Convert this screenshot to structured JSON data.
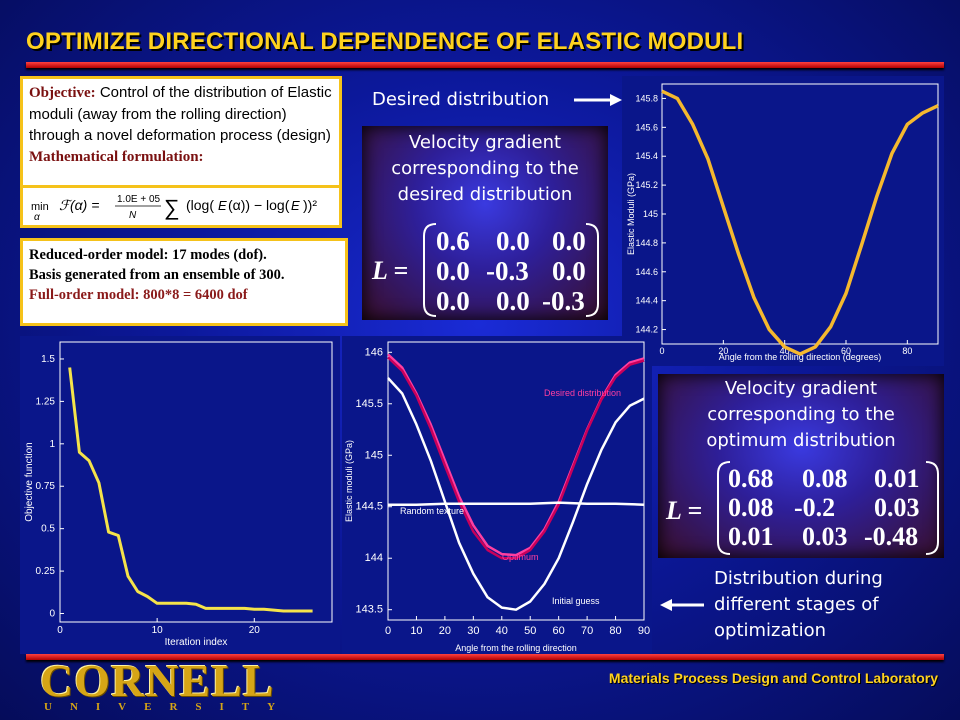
{
  "title": "OPTIMIZE DIRECTIONAL DEPENDENCE OF ELASTIC MODULI",
  "objective": {
    "label": "Objective:",
    "text": "Control of the distribution of Elastic moduli (away from the rolling direction) through a novel deformation process (design)",
    "math_label": "Mathematical formulation:"
  },
  "reduced_model": {
    "line1": "Reduced-order model: 17 modes (dof).",
    "line2": "Basis generated from an ensemble of 300.",
    "line3": "Full-order model: 800*8 = 6400 dof"
  },
  "desired_label": "Desired distribution",
  "desired_box": {
    "text": "Velocity gradient corresponding to the desired distribution",
    "L": "L =",
    "rows": [
      [
        "0.6",
        "0.0",
        "0.0"
      ],
      [
        "0.0",
        "-0.3",
        "0.0"
      ],
      [
        "0.0",
        "0.0",
        "-0.3"
      ]
    ]
  },
  "optimum_box": {
    "text": "Velocity gradient corresponding to the optimum distribution",
    "L": "L =",
    "rows": [
      [
        "0.68",
        "0.08",
        "0.01"
      ],
      [
        "0.08",
        "-0.2",
        "0.03"
      ],
      [
        "0.01",
        "0.03",
        "-0.48"
      ]
    ]
  },
  "stages_label": "Distribution during different stages of optimization",
  "footer": "Materials Process Design and Control Laboratory",
  "logo": {
    "name": "CORNELL",
    "sub": "UNIVERSITY"
  },
  "chart_data": [
    {
      "id": "desired",
      "type": "line",
      "xlabel": "Angle from the rolling direction (degrees)",
      "ylabel": "Elastic Moduli (GPa)",
      "xticks": [
        "0",
        "20",
        "40",
        "60",
        "80"
      ],
      "yticks": [
        "144.2",
        "144.4",
        "144.6",
        "144.8",
        "145",
        "145.2",
        "145.4",
        "145.6",
        "145.8"
      ],
      "xlim": [
        0,
        90
      ],
      "ylim": [
        144.1,
        145.9
      ],
      "color": "#f5b82e",
      "series": [
        {
          "x": [
            0,
            5,
            10,
            15,
            20,
            25,
            30,
            35,
            40,
            45,
            50,
            55,
            60,
            65,
            70,
            75,
            80,
            85,
            90
          ],
          "y": [
            145.85,
            145.8,
            145.62,
            145.38,
            145.05,
            144.72,
            144.42,
            144.2,
            144.08,
            144.03,
            144.08,
            144.22,
            144.45,
            144.78,
            145.12,
            145.42,
            145.62,
            145.7,
            145.75
          ]
        }
      ]
    },
    {
      "id": "objective",
      "type": "line",
      "xlabel": "Iteration index",
      "ylabel": "Objective function",
      "xticks": [
        "0",
        "10",
        "20"
      ],
      "yticks": [
        "0",
        "0.25",
        "0.5",
        "0.75",
        "1",
        "1.25",
        "1.5"
      ],
      "xlim": [
        0,
        28
      ],
      "ylim": [
        -0.05,
        1.6
      ],
      "color": "#f5e34a",
      "series": [
        {
          "x": [
            1,
            2,
            3,
            4,
            5,
            6,
            7,
            8,
            9,
            10,
            11,
            12,
            13,
            14,
            15,
            16,
            17,
            18,
            19,
            20,
            21,
            22,
            23,
            24,
            25,
            26
          ],
          "y": [
            1.45,
            0.95,
            0.9,
            0.77,
            0.48,
            0.46,
            0.22,
            0.13,
            0.1,
            0.06,
            0.06,
            0.06,
            0.06,
            0.055,
            0.03,
            0.03,
            0.03,
            0.03,
            0.03,
            0.025,
            0.025,
            0.02,
            0.015,
            0.015,
            0.015,
            0.015
          ]
        }
      ]
    },
    {
      "id": "stages",
      "type": "line",
      "xlabel": "Angle from the rolling direction",
      "ylabel": "Elastic moduli (GPa)",
      "xticks": [
        "0",
        "10",
        "20",
        "30",
        "40",
        "50",
        "60",
        "70",
        "80",
        "90"
      ],
      "yticks": [
        "143.5",
        "144",
        "144.5",
        "145",
        "145.5",
        "146"
      ],
      "xlim": [
        0,
        90
      ],
      "ylim": [
        143.4,
        146.1
      ],
      "series": [
        {
          "name": "Desired distribution",
          "color": "#ff3fa0",
          "x": [
            0,
            5,
            10,
            15,
            20,
            25,
            30,
            35,
            40,
            45,
            50,
            55,
            60,
            65,
            70,
            75,
            80,
            85,
            90
          ],
          "y": [
            145.98,
            145.85,
            145.6,
            145.3,
            144.95,
            144.6,
            144.32,
            144.12,
            144.04,
            144.03,
            144.1,
            144.28,
            144.55,
            144.9,
            145.25,
            145.55,
            145.78,
            145.9,
            145.94
          ]
        },
        {
          "name": "Optimum",
          "color": "#c8005a",
          "x": [
            0,
            5,
            10,
            15,
            20,
            25,
            30,
            35,
            40,
            45,
            50,
            55,
            60,
            65,
            70,
            75,
            80,
            85,
            90
          ],
          "y": [
            145.95,
            145.82,
            145.58,
            145.26,
            144.9,
            144.55,
            144.26,
            144.08,
            144.0,
            144.0,
            144.08,
            144.26,
            144.52,
            144.88,
            145.24,
            145.54,
            145.76,
            145.88,
            145.92
          ]
        },
        {
          "name": "Random texture",
          "color": "#ffffff",
          "x": [
            0,
            10,
            20,
            30,
            40,
            50,
            60,
            70,
            80,
            90
          ],
          "y": [
            144.52,
            144.52,
            144.53,
            144.53,
            144.53,
            144.53,
            144.54,
            144.53,
            144.53,
            144.52
          ]
        },
        {
          "name": "Initial guess",
          "color": "#ffffff",
          "x": [
            0,
            5,
            10,
            15,
            20,
            25,
            30,
            35,
            40,
            45,
            50,
            55,
            60,
            65,
            70,
            75,
            80,
            85,
            90
          ],
          "y": [
            145.75,
            145.6,
            145.3,
            144.95,
            144.55,
            144.15,
            143.85,
            143.62,
            143.52,
            143.5,
            143.58,
            143.75,
            144.0,
            144.35,
            144.72,
            145.05,
            145.32,
            145.48,
            145.55
          ]
        }
      ],
      "annotations": [
        "Desired distribution",
        "Random texture",
        "Optimum",
        "Initial guess"
      ]
    }
  ]
}
